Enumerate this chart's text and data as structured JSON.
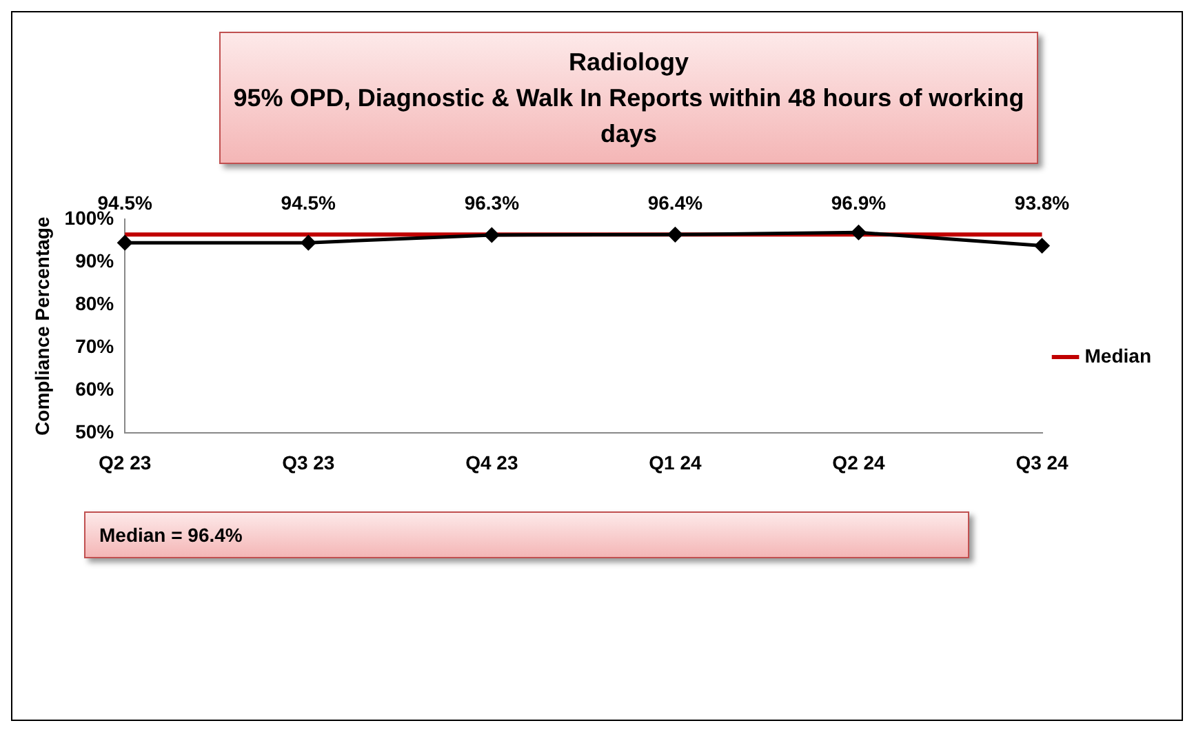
{
  "chart_data": {
    "type": "line",
    "title": "Radiology",
    "subtitle": "95% OPD, Diagnostic & Walk In Reports within 48 hours of working days",
    "ylabel": "Compliance Percentage",
    "categories": [
      "Q2 23",
      "Q3 23",
      "Q4 23",
      "Q1 24",
      "Q2 24",
      "Q3 24"
    ],
    "series": [
      {
        "color": "#000000",
        "values": [
          94.5,
          94.5,
          96.3,
          96.4,
          96.9,
          93.8
        ],
        "value_labels": [
          "94.5%",
          "94.5%",
          "96.3%",
          "96.4%",
          "96.9%",
          "93.8%"
        ],
        "marker": "diamond"
      },
      {
        "name": "Median",
        "color": "#c00000",
        "values": [
          96.4,
          96.4,
          96.4,
          96.4,
          96.4,
          96.4
        ],
        "marker": "none"
      }
    ],
    "ylim": [
      50,
      100
    ],
    "yticks": [
      {
        "value": 50,
        "label": "50%"
      },
      {
        "value": 60,
        "label": "60%"
      },
      {
        "value": 70,
        "label": "70%"
      },
      {
        "value": 80,
        "label": "80%"
      },
      {
        "value": 90,
        "label": "90%"
      },
      {
        "value": 100,
        "label": "100%"
      }
    ],
    "grid": false,
    "legend": "right",
    "line_style": "solid",
    "annotations": [
      "Median = 96.4%"
    ]
  }
}
